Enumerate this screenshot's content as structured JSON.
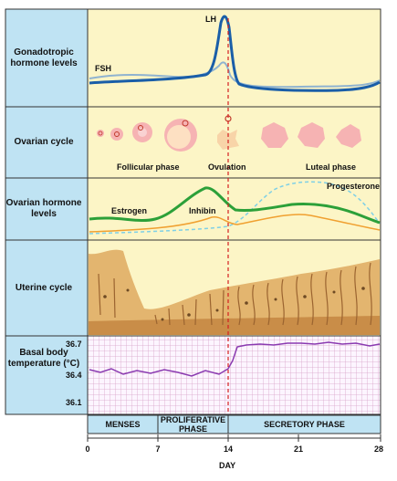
{
  "rows": {
    "gonadotropic": "Gonadotropic hormone levels",
    "ovarian_cycle": "Ovarian cycle",
    "ovarian_hormone": "Ovarian hormone levels",
    "uterine": "Uterine cycle",
    "basal_temp": "Basal body temperature (°C)"
  },
  "curve_labels": {
    "lh": "LH",
    "fsh": "FSH",
    "estrogen": "Estrogen",
    "inhibin": "Inhibin",
    "progesterone": "Progesterone"
  },
  "ovarian_phases": {
    "follicular": "Follicular phase",
    "ovulation": "Ovulation",
    "luteal": "Luteal phase"
  },
  "temperature_ticks": [
    "36.7",
    "36.4",
    "36.1"
  ],
  "uterine_phases": {
    "menses": "MENSES",
    "proliferative": "PROLIFERATIVE PHASE",
    "secretory": "SECRETORY PHASE"
  },
  "day_ticks": [
    "0",
    "7",
    "14",
    "21",
    "28"
  ],
  "x_axis_label": "DAY",
  "colors": {
    "panel_bg": "#fcf5c6",
    "label_bg": "#bfe3f3",
    "lh_curve": "#1a5ea8",
    "fsh_curve": "#8fb3d0",
    "estrogen_curve": "#2ca039",
    "inhibin_curve": "#f0a030",
    "progesterone_curve": "#7fd0e6",
    "temperature_curve": "#8a3ab0",
    "ovulation_line": "#d42020"
  }
}
